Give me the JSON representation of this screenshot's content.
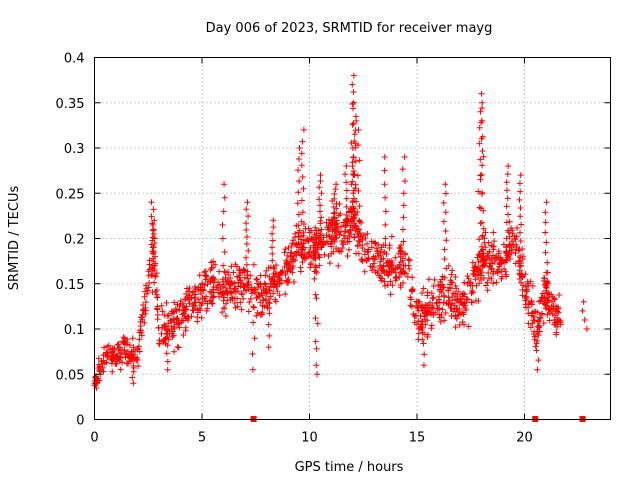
{
  "chart_data": {
    "type": "scatter",
    "title": "Day 006 of 2023, SRMTID for receiver mayg",
    "xlabel": "GPS time / hours",
    "ylabel": "SRMTID / TECUs",
    "xlim": [
      0,
      24
    ],
    "ylim": [
      0,
      0.4
    ],
    "x_ticks": [
      0,
      5,
      10,
      15,
      20
    ],
    "x_tick_labels": [
      "0",
      "5",
      "10",
      "15",
      "20"
    ],
    "y_ticks": [
      0,
      0.05,
      0.1,
      0.15,
      0.2,
      0.25,
      0.3,
      0.35,
      0.4
    ],
    "y_tick_labels": [
      "0",
      "0.05",
      "0.1",
      "0.15",
      "0.2",
      "0.25",
      "0.3",
      "0.35",
      "0.4"
    ],
    "grid": true,
    "marker": "plus",
    "color": "#ff0000",
    "trend": [
      [
        0.0,
        0.045
      ],
      [
        0.5,
        0.07
      ],
      [
        1.0,
        0.07
      ],
      [
        1.5,
        0.075
      ],
      [
        2.0,
        0.07
      ],
      [
        2.4,
        0.14
      ],
      [
        2.8,
        0.18
      ],
      [
        3.0,
        0.1
      ],
      [
        3.5,
        0.1
      ],
      [
        4.0,
        0.11
      ],
      [
        4.5,
        0.13
      ],
      [
        5.0,
        0.14
      ],
      [
        5.5,
        0.15
      ],
      [
        6.0,
        0.14
      ],
      [
        6.5,
        0.15
      ],
      [
        7.0,
        0.15
      ],
      [
        7.5,
        0.14
      ],
      [
        8.0,
        0.14
      ],
      [
        8.5,
        0.15
      ],
      [
        9.0,
        0.17
      ],
      [
        9.5,
        0.19
      ],
      [
        10.0,
        0.19
      ],
      [
        10.5,
        0.19
      ],
      [
        11.0,
        0.21
      ],
      [
        11.5,
        0.2
      ],
      [
        12.0,
        0.22
      ],
      [
        12.5,
        0.19
      ],
      [
        13.0,
        0.18
      ],
      [
        13.5,
        0.17
      ],
      [
        14.0,
        0.17
      ],
      [
        14.5,
        0.17
      ],
      [
        15.0,
        0.12
      ],
      [
        15.5,
        0.12
      ],
      [
        16.0,
        0.13
      ],
      [
        16.5,
        0.14
      ],
      [
        17.0,
        0.12
      ],
      [
        17.5,
        0.14
      ],
      [
        18.0,
        0.17
      ],
      [
        18.5,
        0.18
      ],
      [
        19.0,
        0.17
      ],
      [
        19.5,
        0.2
      ],
      [
        20.0,
        0.15
      ],
      [
        20.5,
        0.1
      ],
      [
        21.0,
        0.14
      ],
      [
        21.5,
        0.11
      ]
    ],
    "spikes": [
      [
        2.7,
        0.24
      ],
      [
        2.75,
        0.22
      ],
      [
        6.0,
        0.26
      ],
      [
        7.1,
        0.24
      ],
      [
        9.5,
        0.3
      ],
      [
        9.7,
        0.32
      ],
      [
        11.2,
        0.26
      ],
      [
        11.7,
        0.28
      ],
      [
        12.0,
        0.37
      ],
      [
        12.05,
        0.38
      ],
      [
        12.1,
        0.35
      ],
      [
        12.15,
        0.33
      ],
      [
        12.3,
        0.32
      ],
      [
        13.5,
        0.29
      ],
      [
        14.4,
        0.29
      ],
      [
        16.3,
        0.26
      ],
      [
        17.9,
        0.34
      ],
      [
        18.0,
        0.36
      ],
      [
        18.05,
        0.35
      ],
      [
        19.2,
        0.28
      ],
      [
        19.8,
        0.27
      ],
      [
        21.0,
        0.24
      ],
      [
        12.0,
        0.3
      ],
      [
        10.5,
        0.27
      ],
      [
        8.3,
        0.22
      ]
    ],
    "dips": [
      [
        10.3,
        0.06
      ],
      [
        10.35,
        0.05
      ],
      [
        7.4,
        0.055
      ],
      [
        20.6,
        0.055
      ],
      [
        15.3,
        0.06
      ],
      [
        3.4,
        0.055
      ],
      [
        8.1,
        0.08
      ],
      [
        1.8,
        0.04
      ]
    ],
    "late_cluster": [
      [
        22.7,
        0.12
      ],
      [
        22.8,
        0.11
      ],
      [
        22.9,
        0.1
      ],
      [
        22.75,
        0.13
      ]
    ],
    "zero_values": [
      [
        7.4,
        0
      ],
      [
        20.5,
        0
      ],
      [
        22.7,
        0
      ]
    ],
    "spread": 0.03
  }
}
